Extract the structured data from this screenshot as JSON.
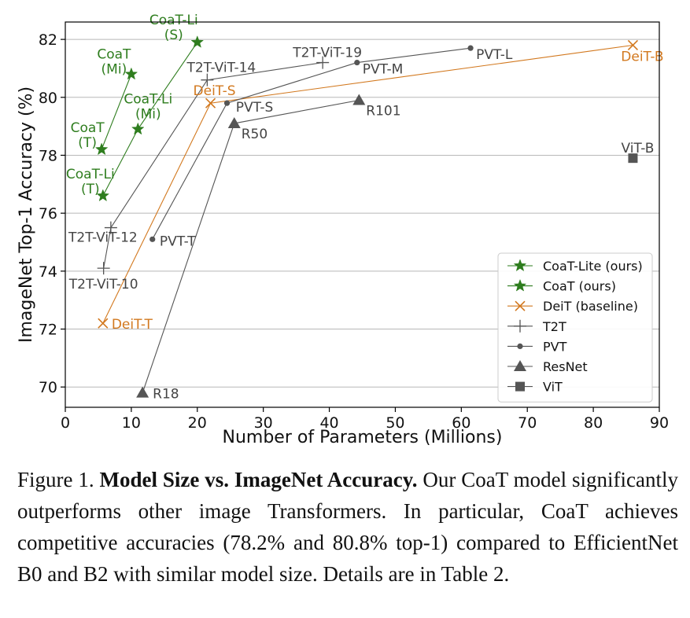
{
  "chart_data": {
    "type": "scatter",
    "xlabel": "Number of Parameters (Millions)",
    "ylabel": "ImageNet Top-1 Accuracy (%)",
    "xlim": [
      0,
      90
    ],
    "ylim": [
      69.3,
      82.6
    ],
    "xticks": [
      0,
      10,
      20,
      30,
      40,
      50,
      60,
      70,
      80,
      90
    ],
    "yticks": [
      70,
      72,
      74,
      76,
      78,
      80,
      82
    ],
    "grid": "horizontal",
    "legend_position": "lower-right",
    "series": [
      {
        "name": "CoaT-Lite (ours)",
        "color": "#2e7d1e",
        "marker": "star",
        "line": true,
        "points": [
          {
            "x": 5.7,
            "y": 76.6,
            "label": "CoaT-Li\n(T)",
            "label_color": "#2e7d1e"
          },
          {
            "x": 11.0,
            "y": 78.9,
            "label": "CoaT-Li\n(Mi)",
            "label_color": "#2e7d1e"
          },
          {
            "x": 20.0,
            "y": 81.9,
            "label": "CoaT-Li\n(S)",
            "label_color": "#2e7d1e"
          }
        ]
      },
      {
        "name": "CoaT (ours)",
        "color": "#2e7d1e",
        "marker": "star",
        "line": true,
        "points": [
          {
            "x": 5.5,
            "y": 78.2,
            "label": "CoaT\n(T)",
            "label_color": "#2e7d1e"
          },
          {
            "x": 10.0,
            "y": 80.8,
            "label": "CoaT\n(Mi)",
            "label_color": "#2e7d1e"
          }
        ]
      },
      {
        "name": "DeiT (baseline)",
        "color": "#d2781e",
        "marker": "x",
        "line": true,
        "points": [
          {
            "x": 5.7,
            "y": 72.2,
            "label": "DeiT-T",
            "label_color": "#d2781e"
          },
          {
            "x": 22.0,
            "y": 79.8,
            "label": "DeiT-S",
            "label_color": "#d2781e"
          },
          {
            "x": 86.0,
            "y": 81.8,
            "label": "DeiT-B",
            "label_color": "#d2781e"
          }
        ]
      },
      {
        "name": "T2T",
        "color": "#555555",
        "marker": "plus",
        "line": true,
        "points": [
          {
            "x": 5.8,
            "y": 74.1,
            "label": "T2T-ViT-10",
            "label_color": "#444444"
          },
          {
            "x": 6.9,
            "y": 75.5,
            "label": "T2T-ViT-12",
            "label_color": "#444444"
          },
          {
            "x": 21.5,
            "y": 80.6,
            "label": "T2T-ViT-14",
            "label_color": "#444444"
          },
          {
            "x": 39.0,
            "y": 81.2,
            "label": "T2T-ViT-19",
            "label_color": "#444444"
          }
        ]
      },
      {
        "name": "PVT",
        "color": "#555555",
        "marker": "dot",
        "line": true,
        "points": [
          {
            "x": 13.2,
            "y": 75.1,
            "label": "PVT-T",
            "label_color": "#444444"
          },
          {
            "x": 24.5,
            "y": 79.8,
            "label": "PVT-S",
            "label_color": "#444444"
          },
          {
            "x": 44.2,
            "y": 81.2,
            "label": "PVT-M",
            "label_color": "#444444"
          },
          {
            "x": 61.4,
            "y": 81.7,
            "label": "PVT-L",
            "label_color": "#444444"
          }
        ]
      },
      {
        "name": "ResNet",
        "color": "#555555",
        "marker": "triangle",
        "line": true,
        "points": [
          {
            "x": 11.7,
            "y": 69.8,
            "label": "R18",
            "label_color": "#444444"
          },
          {
            "x": 25.6,
            "y": 79.1,
            "label": "R50",
            "label_color": "#444444"
          },
          {
            "x": 44.5,
            "y": 79.9,
            "label": "R101",
            "label_color": "#444444"
          }
        ]
      },
      {
        "name": "ViT",
        "color": "#555555",
        "marker": "square",
        "line": false,
        "points": [
          {
            "x": 86.0,
            "y": 77.9,
            "label": "ViT-B",
            "label_color": "#444444"
          }
        ]
      }
    ]
  },
  "caption": {
    "prefix": "Figure 1.",
    "bold": "Model Size vs. ImageNet Accuracy.",
    "body": "Our CoaT model significantly outperforms other image Transformers. In particular, CoaT achieves competitive accuracies (78.2% and 80.8% top-1) compared to EfficientNet B0 and B2 with similar model size. Details are in Table 2."
  }
}
